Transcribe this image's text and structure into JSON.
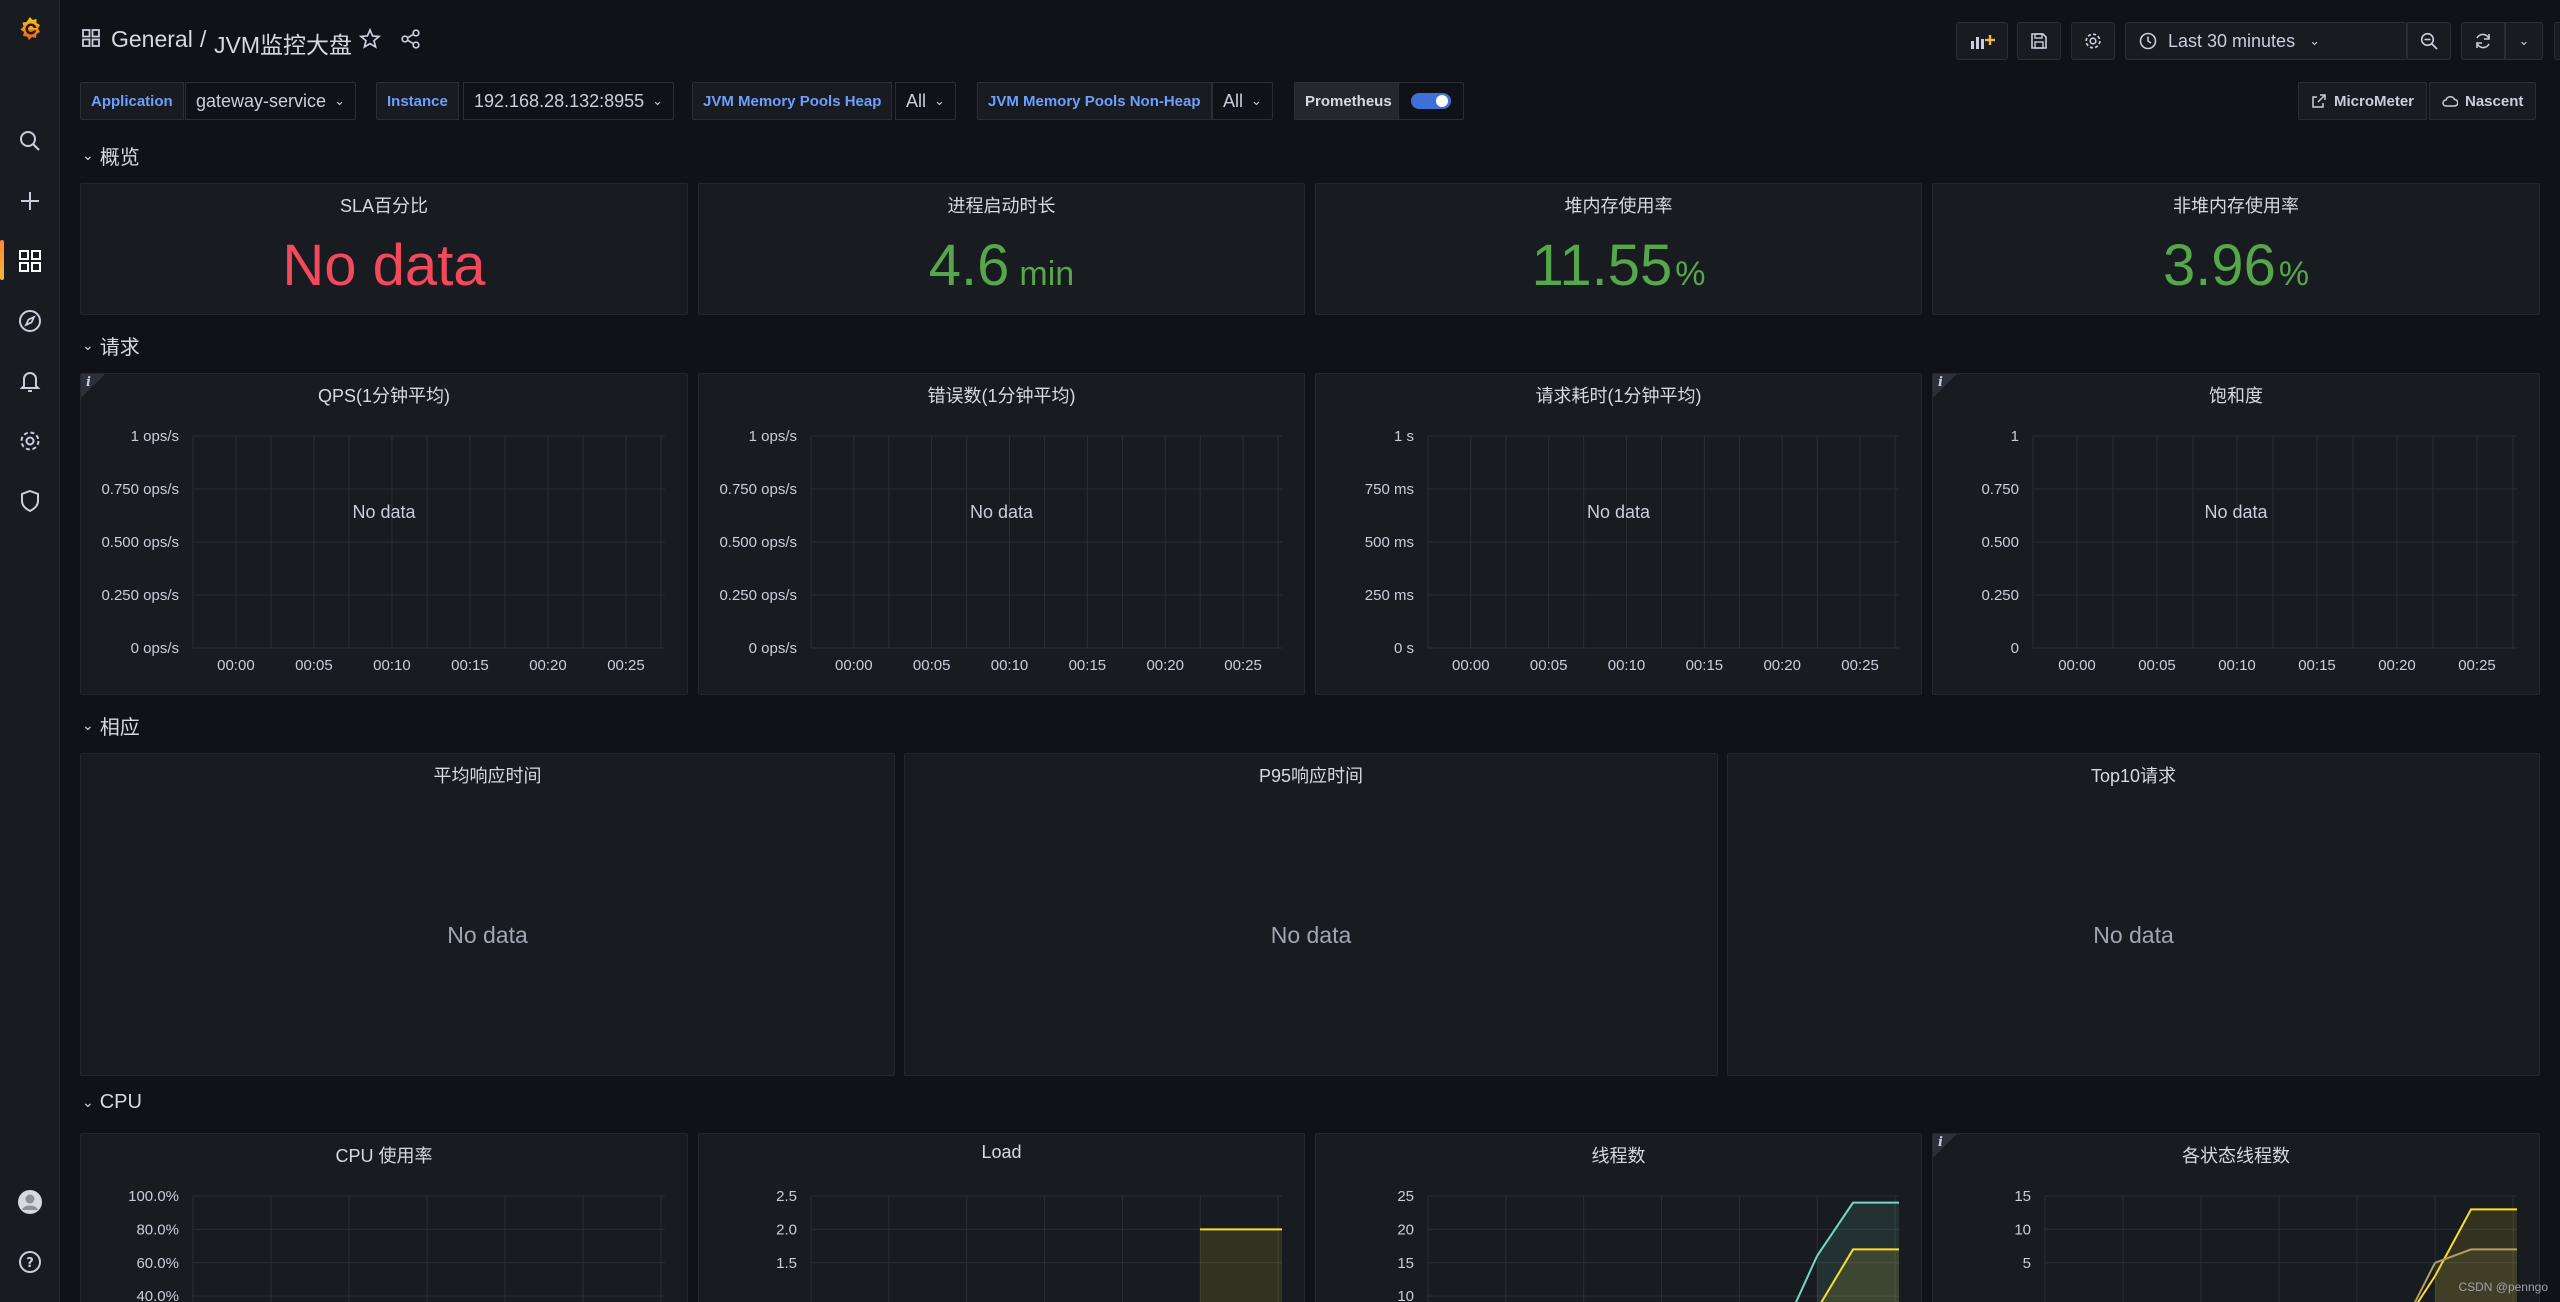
{
  "topbar": {
    "breadcrumb_folder": "General",
    "breadcrumb_sep": "/",
    "dashboard_title": "JVM监控大盘",
    "time_range": "Last 30 minutes"
  },
  "variables": [
    {
      "label": "Application",
      "value": "gateway-service"
    },
    {
      "label": "Instance",
      "value": "192.168.28.132:8955"
    },
    {
      "label": "JVM Memory Pools Heap",
      "value": "All"
    },
    {
      "label": "JVM Memory Pools Non-Heap",
      "value": "All"
    }
  ],
  "toggle": {
    "label": "Prometheus",
    "on": true
  },
  "links": {
    "micrometer": "MicroMeter",
    "nascent": "Nascent"
  },
  "rows": {
    "overview": "概览",
    "requests": "请求",
    "response": "相应",
    "cpu": "CPU"
  },
  "stats": [
    {
      "title": "SLA百分比",
      "value": "No data",
      "unit": "",
      "color": "#f2495c"
    },
    {
      "title": "进程启动时长",
      "value": "4.6",
      "unit": "min",
      "color": "#56a64b"
    },
    {
      "title": "堆内存使用率",
      "value": "11.55",
      "unit": "%",
      "color": "#56a64b"
    },
    {
      "title": "非堆内存使用率",
      "value": "3.96",
      "unit": "%",
      "color": "#56a64b"
    }
  ],
  "request_panels": [
    {
      "title": "QPS(1分钟平均)",
      "no_data": "No data"
    },
    {
      "title": "错误数(1分钟平均)",
      "no_data": "No data"
    },
    {
      "title": "请求耗时(1分钟平均)",
      "no_data": "No data"
    },
    {
      "title": "饱和度",
      "no_data": "No data"
    }
  ],
  "response_panels": [
    {
      "title": "平均响应时间",
      "no_data": "No data"
    },
    {
      "title": "P95响应时间",
      "no_data": "No data"
    },
    {
      "title": "Top10请求",
      "no_data": "No data"
    }
  ],
  "cpu_panels": [
    {
      "title": "CPU 使用率"
    },
    {
      "title": "Load"
    },
    {
      "title": "线程数"
    },
    {
      "title": "各状态线程数"
    }
  ],
  "chart_data": [
    {
      "type": "line",
      "title": "QPS(1分钟平均)",
      "x_ticks": [
        "00:00",
        "00:05",
        "00:10",
        "00:15",
        "00:20",
        "00:25"
      ],
      "y_ticks": [
        "1 ops/s",
        "0.750 ops/s",
        "0.500 ops/s",
        "0.250 ops/s",
        "0 ops/s"
      ],
      "series": []
    },
    {
      "type": "line",
      "title": "错误数(1分钟平均)",
      "x_ticks": [
        "00:00",
        "00:05",
        "00:10",
        "00:15",
        "00:20",
        "00:25"
      ],
      "y_ticks": [
        "1 ops/s",
        "0.750 ops/s",
        "0.500 ops/s",
        "0.250 ops/s",
        "0 ops/s"
      ],
      "series": []
    },
    {
      "type": "line",
      "title": "请求耗时(1分钟平均)",
      "x_ticks": [
        "00:00",
        "00:05",
        "00:10",
        "00:15",
        "00:20",
        "00:25"
      ],
      "y_ticks": [
        "1 s",
        "750 ms",
        "500 ms",
        "250 ms",
        "0 s"
      ],
      "series": []
    },
    {
      "type": "line",
      "title": "饱和度",
      "x_ticks": [
        "00:00",
        "00:05",
        "00:10",
        "00:15",
        "00:20",
        "00:25"
      ],
      "y_ticks": [
        "1",
        "0.750",
        "0.500",
        "0.250",
        "0"
      ],
      "series": []
    },
    {
      "type": "line",
      "title": "CPU 使用率",
      "y_ticks": [
        "100.0%",
        "80.0%",
        "60.0%",
        "40.0%"
      ],
      "series": []
    },
    {
      "type": "area",
      "title": "Load",
      "y_ticks": [
        "2.5",
        "2.0",
        "1.5"
      ],
      "series": [
        {
          "color": "#fade2a",
          "values": [
            2.0,
            2.0
          ]
        }
      ]
    },
    {
      "type": "area",
      "title": "线程数",
      "y_ticks": [
        "25",
        "20",
        "15",
        "10"
      ],
      "series": [
        {
          "color": "#73d8c8",
          "values": [
            16,
            24,
            24
          ]
        },
        {
          "color": "#fade2a",
          "values": [
            8,
            17,
            17
          ]
        }
      ]
    },
    {
      "type": "area",
      "title": "各状态线程数",
      "y_ticks": [
        "15",
        "10",
        "5"
      ],
      "series": [
        {
          "color": "#fade2a",
          "values": [
            3,
            13,
            13
          ]
        },
        {
          "color": "#b0a060",
          "values": [
            5,
            7,
            7
          ]
        }
      ]
    }
  ],
  "watermark": "CSDN @penngo"
}
